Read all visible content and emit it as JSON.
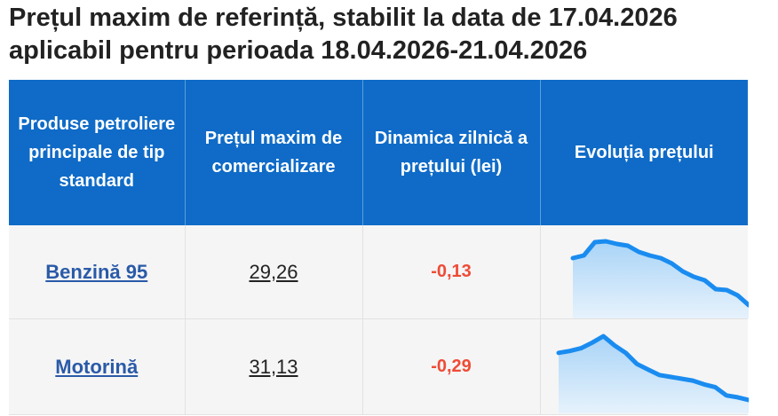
{
  "heading": {
    "line1": "Prețul maxim de referință, stabilit la data de 17.04.2026",
    "line2": "aplicabil pentru perioada 18.04.2026-21.04.2026"
  },
  "table": {
    "headers": [
      "Produse petroliere principale de tip standard",
      "Prețul maxim de comercializare",
      "Dinamica zilnică a prețului (lei)",
      "Evoluția prețului"
    ],
    "rows": [
      {
        "product": "Benzină 95",
        "price": "29,26",
        "change": "-0,13",
        "trend": [
          9,
          12,
          27,
          28,
          25,
          23,
          16,
          12,
          9,
          3,
          -6,
          -12,
          -16,
          -26,
          -27,
          -33,
          -44
        ]
      },
      {
        "product": "Motorină",
        "price": "31,13",
        "change": "-0,29",
        "trend": [
          22,
          24,
          27,
          33,
          40,
          30,
          22,
          10,
          4,
          -2,
          -4,
          -6,
          -8,
          -12,
          -15,
          -24,
          -26,
          -29
        ]
      }
    ]
  },
  "colors": {
    "header_bg": "#0f6bc7",
    "line": "#1a8cf0",
    "fill": "#a9d4f7",
    "negative": "#ef4b36",
    "link": "#2a5aa8"
  }
}
